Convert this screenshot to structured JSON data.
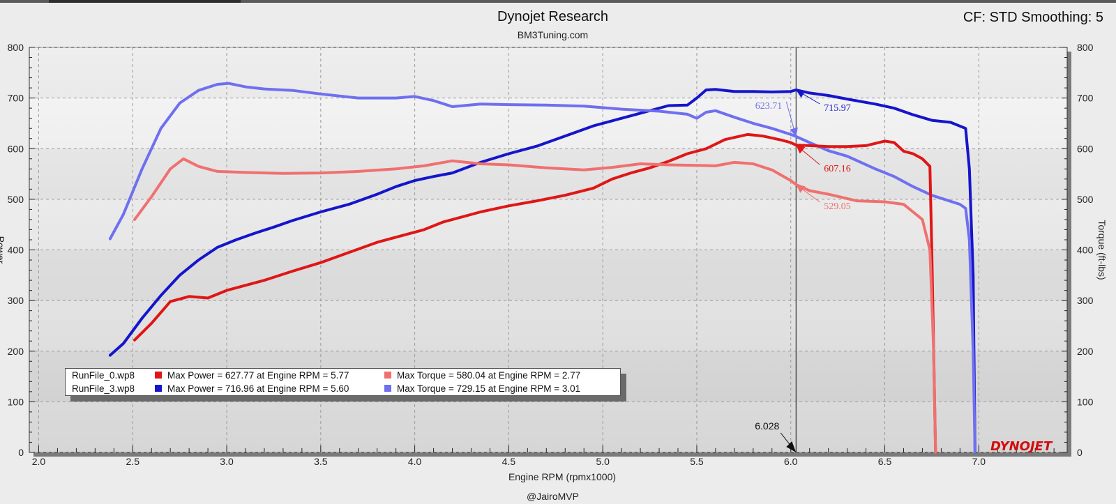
{
  "header": {
    "title": "Dynojet Research",
    "subtitle": "BM3Tuning.com",
    "cf_label": "CF: STD Smoothing: 5",
    "author": "@JairoMVP",
    "logo_text": "DYNOJET"
  },
  "legend": {
    "rows": [
      {
        "file": "RunFile_0.wp8",
        "power_text": "Max Power = 627.77 at Engine RPM = 5.77",
        "torque_text": "Max Torque = 580.04 at Engine RPM = 2.77",
        "power_color": "#e01616",
        "torque_color": "#f07070"
      },
      {
        "file": "RunFile_3.wp8",
        "power_text": "Max Power = 716.96 at Engine RPM = 5.60",
        "torque_text": "Max Torque = 729.15 at Engine RPM = 3.01",
        "power_color": "#1515cc",
        "torque_color": "#6f6ff0"
      }
    ]
  },
  "chart_data": {
    "type": "line",
    "title": "Dynojet Research",
    "subtitle": "BM3Tuning.com",
    "xlabel": "Engine RPM (rpmx1000)",
    "ylabel": "Power",
    "y2label": "Torque (ft-lbs)",
    "xlim": [
      1.95,
      7.47
    ],
    "ylim": [
      0,
      800
    ],
    "y2lim": [
      0,
      800
    ],
    "xticks": [
      "2.0",
      "2.5",
      "3.0",
      "3.5",
      "4.0",
      "4.5",
      "5.0",
      "5.5",
      "6.0",
      "6.5",
      "7.0"
    ],
    "yticks": [
      "0",
      "100",
      "200",
      "300",
      "400",
      "500",
      "600",
      "700",
      "800"
    ],
    "grid": true,
    "cursor": {
      "x": 6.028,
      "label": "6.028"
    },
    "series": [
      {
        "name": "RunFile_3 Power",
        "color": "#1515cc",
        "x": [
          2.38,
          2.45,
          2.55,
          2.65,
          2.75,
          2.85,
          2.95,
          3.05,
          3.15,
          3.25,
          3.35,
          3.5,
          3.65,
          3.8,
          3.9,
          4.0,
          4.1,
          4.2,
          4.35,
          4.5,
          4.65,
          4.8,
          4.95,
          5.05,
          5.2,
          5.35,
          5.45,
          5.5,
          5.55,
          5.6,
          5.7,
          5.8,
          5.9,
          6.0,
          6.028,
          6.1,
          6.2,
          6.3,
          6.45,
          6.55,
          6.65,
          6.75,
          6.85,
          6.93,
          6.95,
          6.97,
          6.98
        ],
        "y": [
          192,
          215,
          265,
          310,
          350,
          380,
          405,
          420,
          433,
          445,
          458,
          475,
          490,
          510,
          525,
          537,
          545,
          552,
          573,
          590,
          605,
          625,
          645,
          655,
          670,
          685,
          686,
          700,
          716,
          717,
          713,
          713,
          712,
          713,
          716,
          710,
          705,
          698,
          688,
          680,
          667,
          656,
          652,
          640,
          560,
          350,
          0
        ]
      },
      {
        "name": "RunFile_3 Torque",
        "color": "#6f6ff0",
        "x": [
          2.38,
          2.45,
          2.55,
          2.65,
          2.75,
          2.85,
          2.95,
          3.01,
          3.1,
          3.2,
          3.35,
          3.5,
          3.7,
          3.9,
          4.0,
          4.1,
          4.2,
          4.35,
          4.5,
          4.7,
          4.9,
          5.1,
          5.3,
          5.45,
          5.5,
          5.55,
          5.6,
          5.7,
          5.8,
          5.9,
          6.0,
          6.028,
          6.1,
          6.2,
          6.3,
          6.45,
          6.55,
          6.65,
          6.75,
          6.85,
          6.9,
          6.93,
          6.95,
          6.97,
          6.98
        ],
        "y": [
          422,
          470,
          560,
          640,
          690,
          715,
          727,
          729,
          722,
          718,
          715,
          708,
          700,
          700,
          703,
          695,
          683,
          688,
          687,
          686,
          684,
          678,
          674,
          668,
          660,
          672,
          675,
          662,
          650,
          640,
          628,
          624,
          612,
          596,
          585,
          560,
          545,
          525,
          508,
          496,
          490,
          482,
          420,
          200,
          0
        ]
      },
      {
        "name": "RunFile_0 Power",
        "color": "#e01616",
        "x": [
          2.51,
          2.6,
          2.7,
          2.8,
          2.9,
          3.0,
          3.1,
          3.2,
          3.35,
          3.5,
          3.65,
          3.8,
          3.95,
          4.05,
          4.15,
          4.25,
          4.35,
          4.5,
          4.65,
          4.8,
          4.95,
          5.05,
          5.15,
          5.25,
          5.35,
          5.45,
          5.55,
          5.65,
          5.77,
          5.85,
          5.95,
          6.0,
          6.028,
          6.1,
          6.2,
          6.3,
          6.4,
          6.5,
          6.55,
          6.6,
          6.65,
          6.7,
          6.74,
          6.75,
          6.77
        ],
        "y": [
          222,
          255,
          298,
          308,
          305,
          320,
          330,
          340,
          358,
          375,
          395,
          415,
          430,
          440,
          455,
          465,
          475,
          487,
          497,
          508,
          522,
          540,
          552,
          562,
          575,
          590,
          600,
          618,
          628,
          625,
          617,
          612,
          607,
          606,
          604,
          604,
          606,
          615,
          612,
          595,
          590,
          580,
          565,
          400,
          0
        ]
      },
      {
        "name": "RunFile_0 Torque",
        "color": "#f07070",
        "x": [
          2.51,
          2.6,
          2.7,
          2.77,
          2.85,
          2.95,
          3.1,
          3.3,
          3.5,
          3.7,
          3.9,
          4.05,
          4.2,
          4.35,
          4.5,
          4.7,
          4.9,
          5.05,
          5.2,
          5.35,
          5.5,
          5.6,
          5.7,
          5.8,
          5.9,
          6.0,
          6.028,
          6.1,
          6.2,
          6.35,
          6.5,
          6.6,
          6.65,
          6.7,
          6.74,
          6.76,
          6.77
        ],
        "y": [
          460,
          505,
          560,
          580,
          565,
          555,
          553,
          551,
          552,
          555,
          560,
          566,
          576,
          570,
          568,
          562,
          558,
          563,
          570,
          568,
          567,
          566,
          573,
          570,
          558,
          537,
          529,
          517,
          510,
          497,
          495,
          490,
          475,
          460,
          400,
          200,
          0
        ]
      }
    ],
    "annotations": [
      {
        "text": "715.97",
        "x": 6.028,
        "y": 716,
        "color": "#1515cc"
      },
      {
        "text": "623.71",
        "x": 6.028,
        "y": 624,
        "color": "#6f6ff0"
      },
      {
        "text": "607.16",
        "x": 6.028,
        "y": 607,
        "color": "#e01616"
      },
      {
        "text": "529.05",
        "x": 6.028,
        "y": 529,
        "color": "#f07070"
      }
    ]
  }
}
